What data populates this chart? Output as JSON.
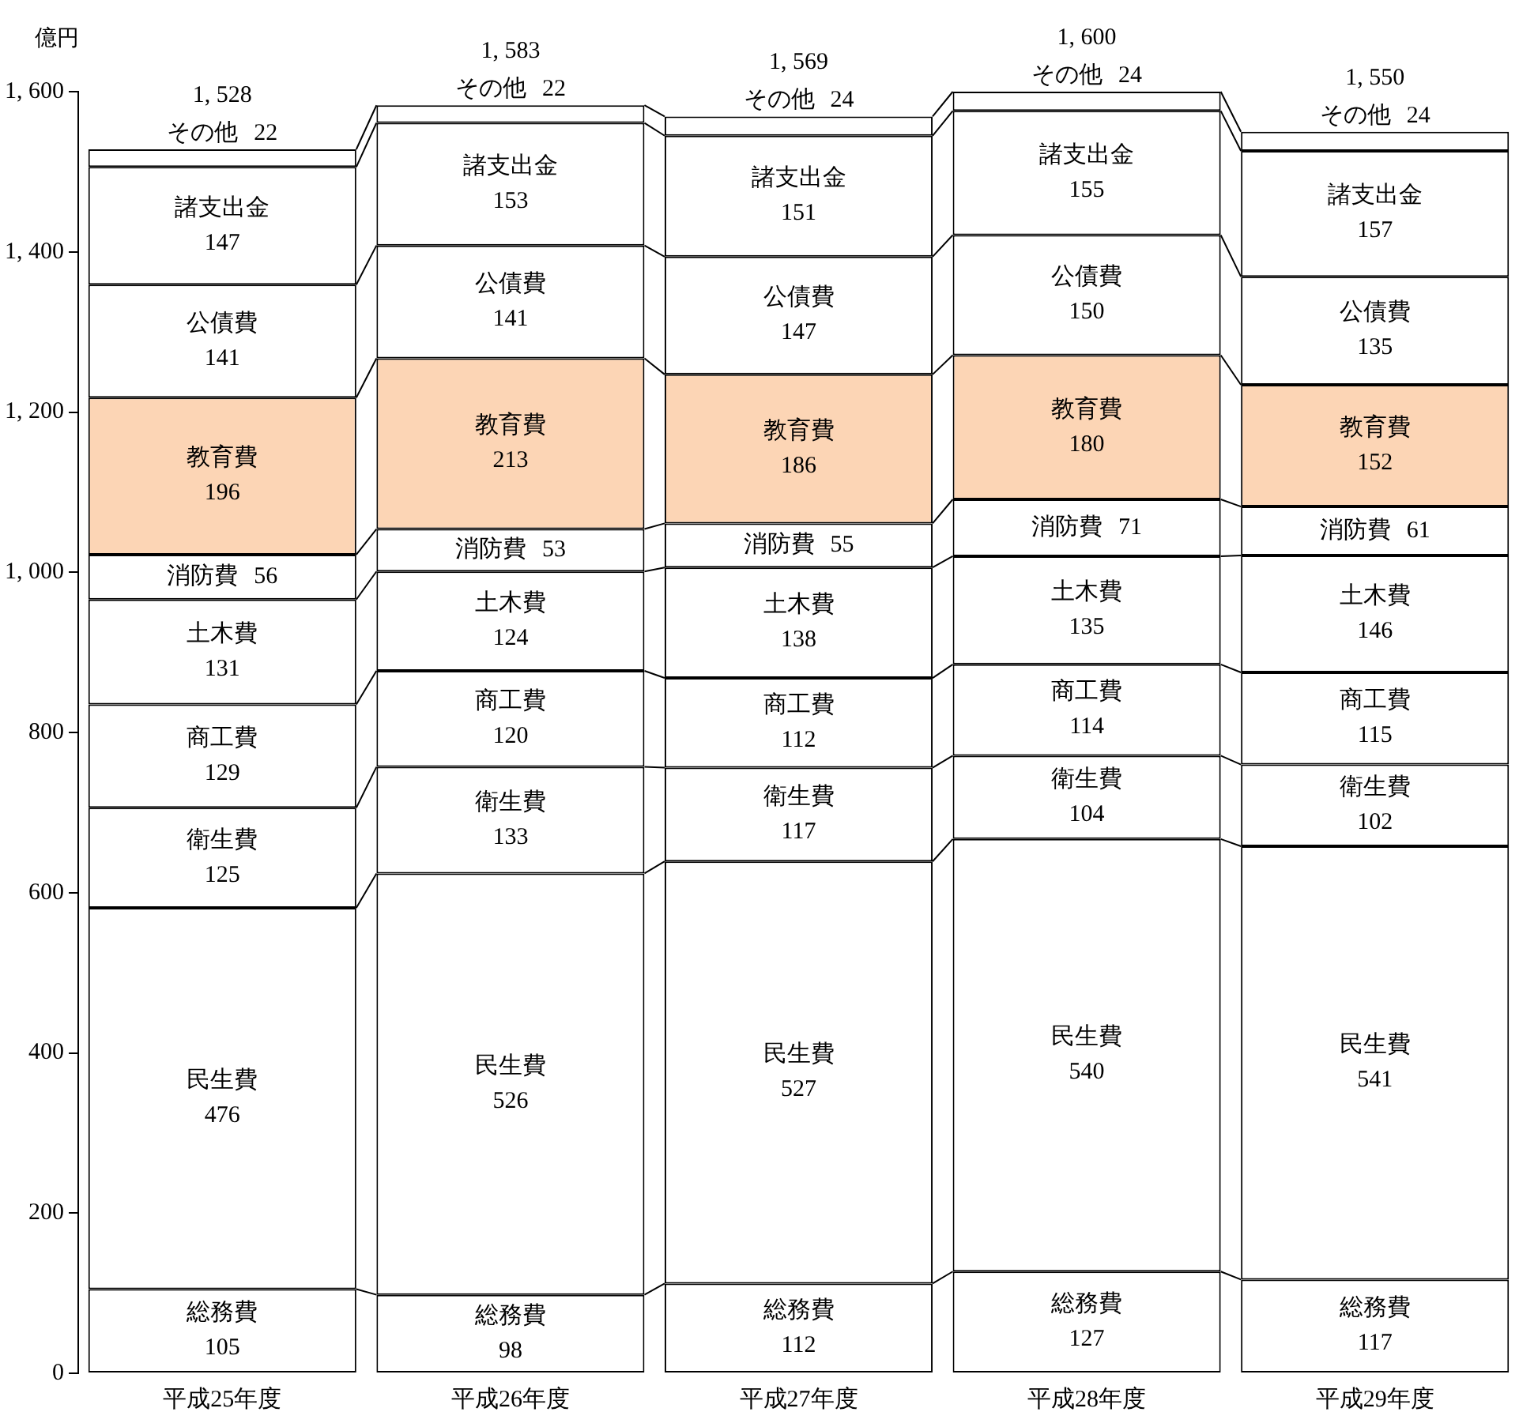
{
  "chart_data": {
    "type": "bar",
    "stacked": true,
    "ylabel": "億円",
    "categories": [
      "平成25年度",
      "平成26年度",
      "平成27年度",
      "平成28年度",
      "平成29年度"
    ],
    "series": [
      {
        "name": "総務費",
        "color": "#ffffff",
        "values": [
          105,
          98,
          112,
          127,
          117
        ]
      },
      {
        "name": "民生費",
        "color": "#ffffff",
        "values": [
          476,
          526,
          527,
          540,
          541
        ]
      },
      {
        "name": "衛生費",
        "color": "#ffffff",
        "values": [
          125,
          133,
          117,
          104,
          102
        ]
      },
      {
        "name": "商工費",
        "color": "#ffffff",
        "values": [
          129,
          120,
          112,
          114,
          115
        ]
      },
      {
        "name": "土木費",
        "color": "#ffffff",
        "values": [
          131,
          124,
          138,
          135,
          146
        ]
      },
      {
        "name": "消防費",
        "color": "#ffffff",
        "values": [
          56,
          53,
          55,
          71,
          61
        ]
      },
      {
        "name": "教育費",
        "color": "#fcd5b5",
        "values": [
          196,
          213,
          186,
          180,
          152
        ]
      },
      {
        "name": "公債費",
        "color": "#ffffff",
        "values": [
          141,
          141,
          147,
          150,
          135
        ]
      },
      {
        "name": "諸支出金",
        "color": "#ffffff",
        "values": [
          147,
          153,
          151,
          155,
          157
        ]
      },
      {
        "name": "その他",
        "color": "#ffffff",
        "values": [
          22,
          22,
          24,
          24,
          24
        ]
      }
    ],
    "totals": [
      "1, 528",
      "1, 583",
      "1, 569",
      "1, 600",
      "1, 550"
    ],
    "ylim": [
      0,
      1600
    ],
    "yticks": [
      0,
      200,
      400,
      600,
      800,
      {
        "value": 1000,
        "label": "1, 000"
      },
      {
        "value": 1200,
        "label": "1, 200"
      },
      {
        "value": 1400,
        "label": "1, 400"
      },
      {
        "value": 1600,
        "label": "1, 600"
      }
    ],
    "grid": false,
    "legend": false,
    "data_labels": true
  }
}
